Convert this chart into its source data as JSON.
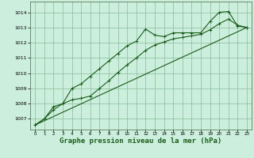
{
  "title": "Graphe pression niveau de la mer (hPa)",
  "background_color": "#cceedd",
  "grid_color": "#88bb99",
  "line_color": "#1a5c1a",
  "xlim": [
    -0.5,
    23.5
  ],
  "ylim": [
    1006.3,
    1014.7
  ],
  "xticks": [
    0,
    1,
    2,
    3,
    4,
    5,
    6,
    7,
    8,
    9,
    10,
    11,
    12,
    13,
    14,
    15,
    16,
    17,
    18,
    19,
    20,
    21,
    22,
    23
  ],
  "yticks": [
    1007,
    1008,
    1009,
    1010,
    1011,
    1012,
    1013,
    1014
  ],
  "series1_x": [
    0,
    1,
    2,
    3,
    4,
    5,
    6,
    7,
    8,
    9,
    10,
    11,
    12,
    13,
    14,
    15,
    16,
    17,
    18,
    19,
    20,
    21,
    22,
    23
  ],
  "series1_y": [
    1006.6,
    1007.0,
    1007.6,
    1008.0,
    1009.0,
    1009.3,
    1009.8,
    1010.3,
    1010.8,
    1011.3,
    1011.8,
    1012.1,
    1012.9,
    1012.5,
    1012.4,
    1012.65,
    1012.65,
    1012.65,
    1012.65,
    1013.4,
    1014.0,
    1014.05,
    1013.1,
    1013.0
  ],
  "series2_x": [
    0,
    1,
    2,
    3,
    4,
    5,
    6,
    7,
    8,
    9,
    10,
    11,
    12,
    13,
    14,
    15,
    16,
    17,
    18,
    19,
    20,
    21,
    22,
    23
  ],
  "series2_y": [
    1006.6,
    1007.0,
    1007.8,
    1008.0,
    1008.25,
    1008.35,
    1008.5,
    1009.0,
    1009.5,
    1010.05,
    1010.55,
    1011.0,
    1011.5,
    1011.85,
    1012.05,
    1012.25,
    1012.35,
    1012.45,
    1012.55,
    1012.85,
    1013.25,
    1013.55,
    1013.15,
    1013.0
  ],
  "series3_x": [
    0,
    23
  ],
  "series3_y": [
    1006.6,
    1013.0
  ],
  "marker": "+",
  "marker_size": 2.5,
  "linewidth": 0.8,
  "title_fontsize": 6.5
}
